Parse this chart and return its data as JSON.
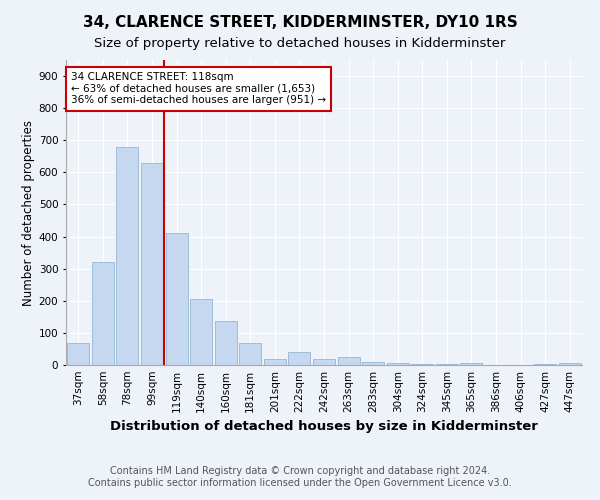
{
  "title": "34, CLARENCE STREET, KIDDERMINSTER, DY10 1RS",
  "subtitle": "Size of property relative to detached houses in Kidderminster",
  "xlabel": "Distribution of detached houses by size in Kidderminster",
  "ylabel": "Number of detached properties",
  "footnote1": "Contains HM Land Registry data © Crown copyright and database right 2024.",
  "footnote2": "Contains public sector information licensed under the Open Government Licence v3.0.",
  "categories": [
    "37sqm",
    "58sqm",
    "78sqm",
    "99sqm",
    "119sqm",
    "140sqm",
    "160sqm",
    "181sqm",
    "201sqm",
    "222sqm",
    "242sqm",
    "263sqm",
    "283sqm",
    "304sqm",
    "324sqm",
    "345sqm",
    "365sqm",
    "386sqm",
    "406sqm",
    "427sqm",
    "447sqm"
  ],
  "values": [
    70,
    320,
    680,
    630,
    410,
    205,
    138,
    68,
    20,
    40,
    20,
    25,
    10,
    5,
    3,
    2,
    5,
    1,
    1,
    2,
    5
  ],
  "bar_color": "#c5d8f0",
  "bar_edge_color": "#a0bcd8",
  "vline_color": "#cc0000",
  "vline_pos": 3.5,
  "annotation_text": "34 CLARENCE STREET: 118sqm\n← 63% of detached houses are smaller (1,653)\n36% of semi-detached houses are larger (951) →",
  "annotation_box_color": "#ffffff",
  "annotation_box_edge": "#cc0000",
  "ylim": [
    0,
    950
  ],
  "yticks": [
    0,
    100,
    200,
    300,
    400,
    500,
    600,
    700,
    800,
    900
  ],
  "background_color": "#eef2f9",
  "grid_color": "#ffffff",
  "title_fontsize": 11,
  "subtitle_fontsize": 9.5,
  "xlabel_fontsize": 9.5,
  "ylabel_fontsize": 8.5,
  "tick_fontsize": 7.5,
  "annotation_fontsize": 7.5,
  "footnote_fontsize": 7
}
